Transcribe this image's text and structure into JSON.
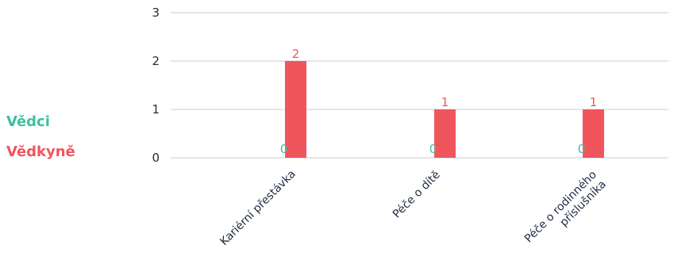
{
  "chart_data": {
    "type": "bar",
    "categories": [
      "Kariérní přestávka",
      "Péče o dítě",
      "Péče o rodinného příslušníka"
    ],
    "category_label_lines": [
      [
        "Kariérní přestávka"
      ],
      [
        "Péče o dítě"
      ],
      [
        "Péče o rodinného",
        "příslušníka"
      ]
    ],
    "series": [
      {
        "name": "Vědci",
        "values": [
          0,
          0,
          0
        ],
        "color": "#3dbf9f"
      },
      {
        "name": "Vědkyně",
        "values": [
          2,
          1,
          1
        ],
        "color": "#f0555e"
      }
    ],
    "ylim": [
      0,
      3
    ],
    "yticks": [
      0,
      1,
      2,
      3
    ],
    "grid": true,
    "legend_position": "left",
    "title": "",
    "xlabel": "",
    "ylabel": ""
  }
}
